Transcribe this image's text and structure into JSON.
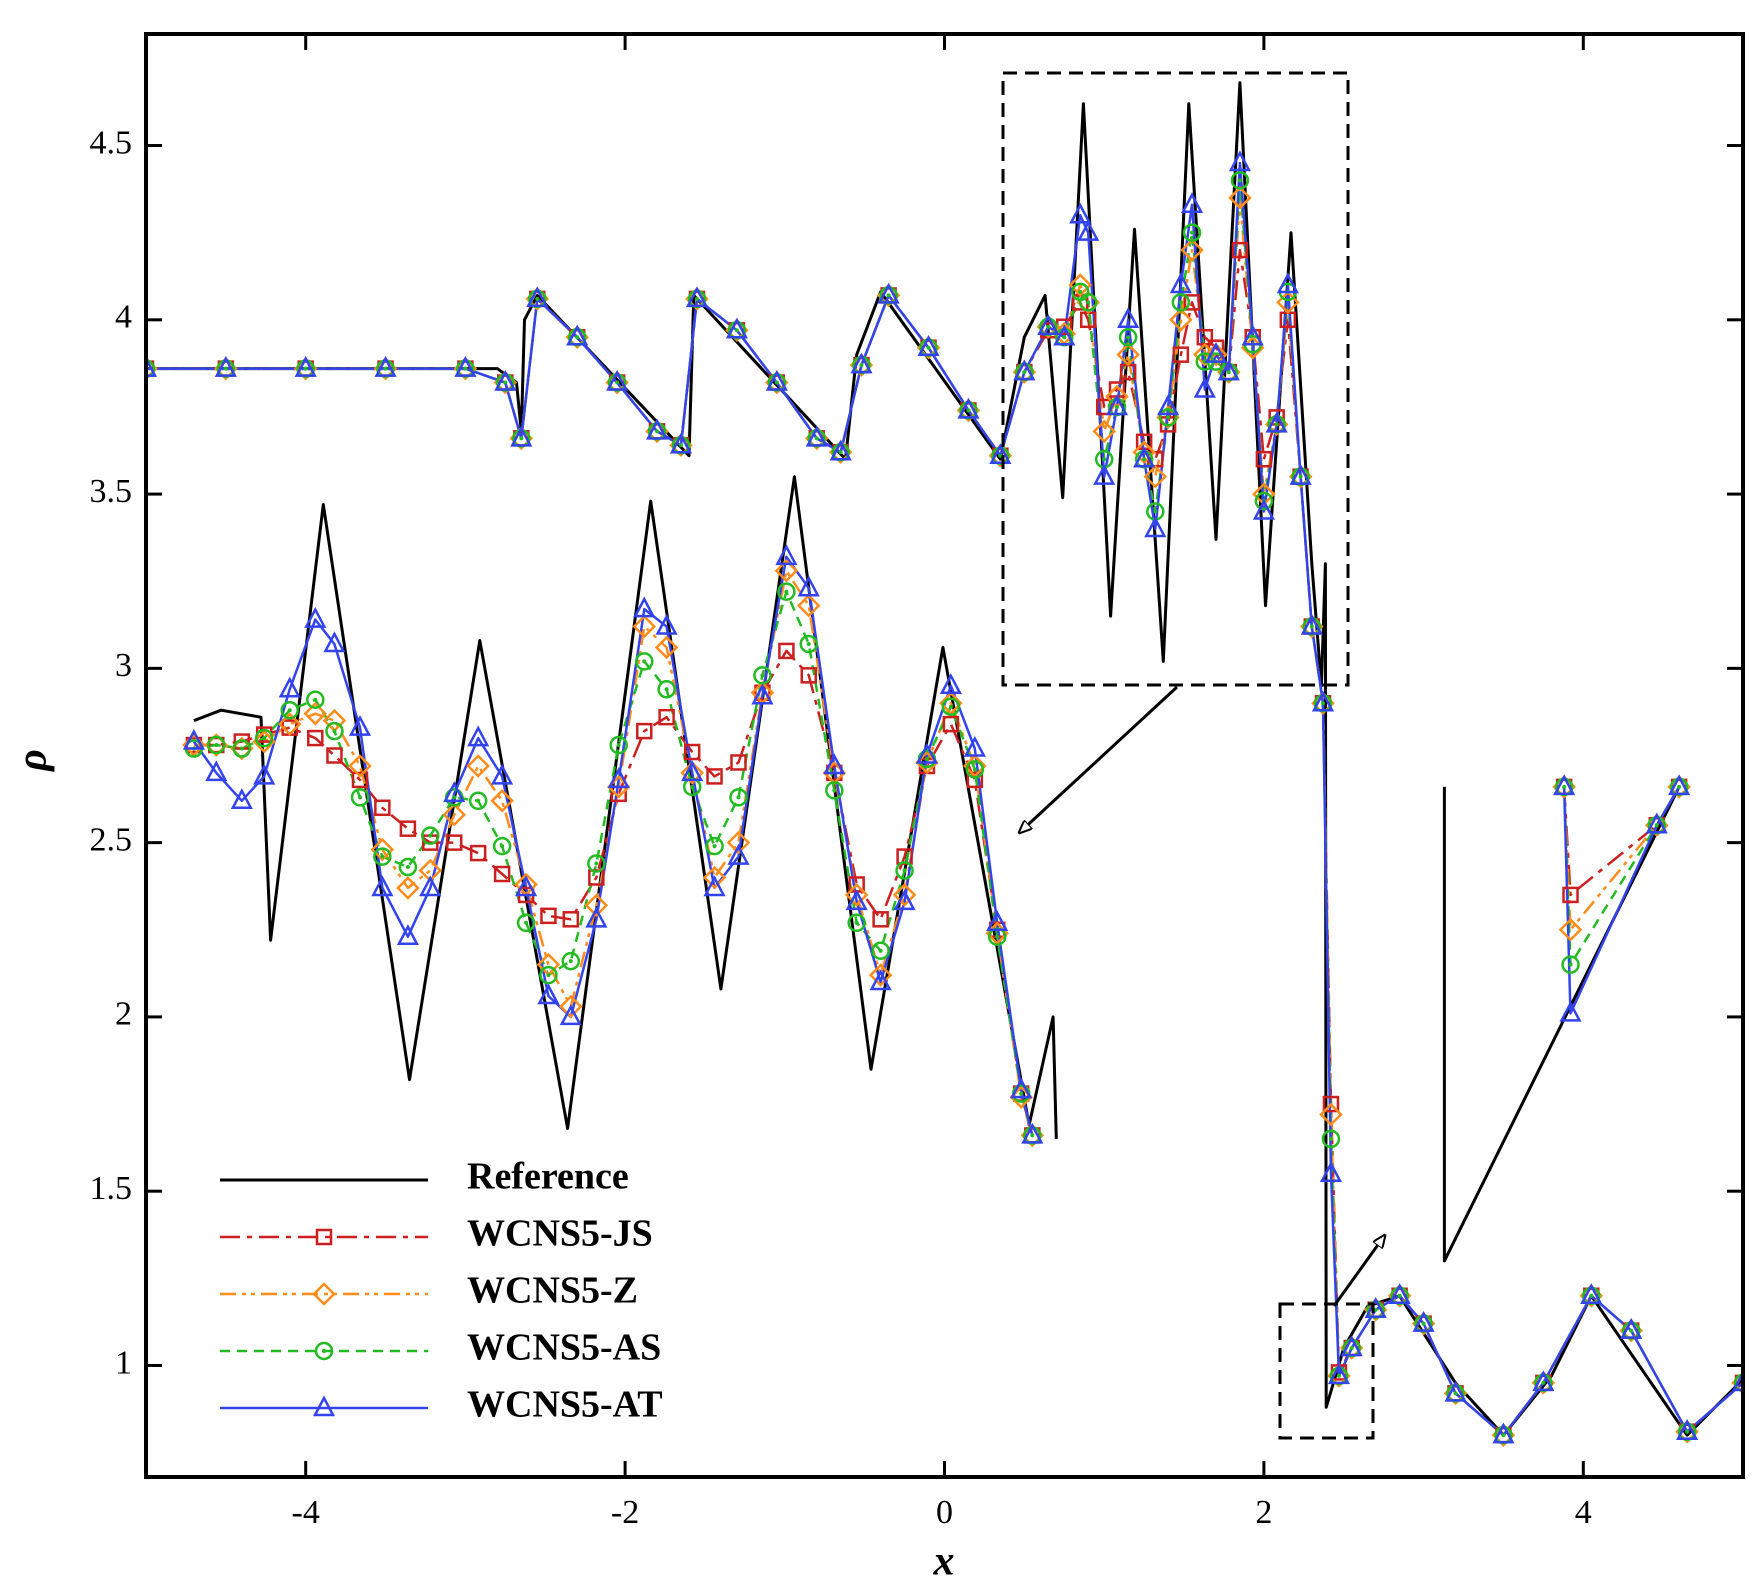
{
  "chart_data": {
    "type": "line",
    "xlabel": "x",
    "ylabel": "ρ",
    "xlim": [
      -5,
      5
    ],
    "ylim": [
      0.68,
      4.82
    ],
    "xticks": [
      -4,
      -2,
      0,
      2,
      4
    ],
    "yticks": [
      1,
      1.5,
      2,
      2.5,
      3,
      3.5,
      4,
      4.5
    ],
    "legend": "lower left",
    "x": [
      -5,
      -4.5,
      -4,
      -3.5,
      -3,
      -2.75,
      -2.65,
      -2.55,
      -2.3,
      -2.05,
      -1.8,
      -1.65,
      -1.55,
      -1.3,
      -1.05,
      -0.8,
      -0.65,
      -0.52,
      -0.35,
      -0.1,
      0.15,
      0.35,
      0.5,
      0.65,
      0.75,
      0.85,
      0.9,
      1.0,
      1.08,
      1.15,
      1.25,
      1.32,
      1.4,
      1.48,
      1.55,
      1.63,
      1.7,
      1.78,
      1.85,
      1.93,
      2.0,
      2.08,
      2.15,
      2.23,
      2.3,
      2.37,
      2.42,
      2.47,
      2.55,
      2.7,
      2.85,
      3.0,
      3.2,
      3.5,
      3.75,
      4.05,
      4.3,
      4.65,
      5.0
    ],
    "series": [
      {
        "name": "Reference",
        "color": "#000000",
        "dash": "solid",
        "marker": "none",
        "x": [
          -5,
          -2.8,
          -2.68,
          -2.65,
          -2.63,
          -2.55,
          -1.6,
          -1.57,
          -0.62,
          -0.55,
          -0.4,
          0.35,
          0.5,
          0.63,
          0.74,
          0.87,
          1.04,
          1.19,
          1.37,
          1.53,
          1.7,
          1.85,
          2.01,
          2.17,
          2.3,
          2.36,
          2.385,
          2.39,
          2.5,
          2.65,
          2.85,
          3.2,
          3.5,
          3.8,
          4.05,
          4.35,
          4.65,
          5.0
        ],
        "values": [
          3.86,
          3.86,
          3.82,
          3.68,
          4.0,
          4.07,
          3.61,
          4.07,
          3.6,
          3.9,
          4.08,
          3.6,
          3.95,
          4.07,
          3.49,
          4.62,
          3.15,
          4.26,
          3.02,
          4.62,
          3.37,
          4.68,
          3.18,
          4.25,
          3.3,
          2.95,
          3.3,
          0.88,
          1.05,
          1.17,
          1.2,
          0.95,
          0.8,
          0.97,
          1.2,
          1.0,
          0.8,
          0.96
        ]
      },
      {
        "name": "WCNS5-JS",
        "color": "#cc1f1f",
        "dash": "dash-dot",
        "marker": "square",
        "values": [
          3.86,
          3.86,
          3.86,
          3.86,
          3.86,
          3.82,
          3.66,
          4.06,
          3.95,
          3.82,
          3.68,
          3.64,
          4.06,
          3.97,
          3.82,
          3.66,
          3.62,
          3.87,
          4.07,
          3.92,
          3.74,
          3.61,
          3.85,
          3.97,
          3.98,
          4.05,
          4.0,
          3.75,
          3.8,
          3.85,
          3.65,
          3.6,
          3.7,
          3.9,
          4.05,
          3.95,
          3.92,
          3.85,
          4.2,
          3.95,
          3.6,
          3.72,
          4.0,
          3.55,
          3.12,
          2.9,
          1.75,
          0.98,
          1.05,
          1.16,
          1.2,
          1.12,
          0.92,
          0.8,
          0.95,
          1.2,
          1.1,
          0.81,
          0.95
        ]
      },
      {
        "name": "WCNS5-Z",
        "color": "#ff8c1a",
        "dash": "dash-dot-dot",
        "marker": "diamond",
        "values": [
          3.86,
          3.86,
          3.86,
          3.86,
          3.86,
          3.82,
          3.66,
          4.06,
          3.95,
          3.82,
          3.68,
          3.64,
          4.06,
          3.97,
          3.82,
          3.66,
          3.62,
          3.87,
          4.07,
          3.92,
          3.74,
          3.61,
          3.85,
          3.98,
          3.96,
          4.1,
          4.05,
          3.68,
          3.78,
          3.9,
          3.62,
          3.55,
          3.72,
          4.0,
          4.2,
          3.9,
          3.9,
          3.85,
          4.35,
          3.92,
          3.5,
          3.7,
          4.05,
          3.55,
          3.12,
          2.9,
          1.72,
          0.97,
          1.05,
          1.16,
          1.2,
          1.12,
          0.92,
          0.8,
          0.95,
          1.2,
          1.1,
          0.81,
          0.95
        ]
      },
      {
        "name": "WCNS5-AS",
        "color": "#22bb22",
        "dash": "dashed",
        "marker": "circle",
        "values": [
          3.86,
          3.86,
          3.86,
          3.86,
          3.86,
          3.82,
          3.66,
          4.06,
          3.95,
          3.82,
          3.68,
          3.64,
          4.06,
          3.97,
          3.82,
          3.66,
          3.62,
          3.87,
          4.07,
          3.92,
          3.74,
          3.61,
          3.85,
          3.98,
          3.95,
          4.08,
          4.05,
          3.6,
          3.75,
          3.95,
          3.6,
          3.45,
          3.72,
          4.05,
          4.25,
          3.88,
          3.88,
          3.85,
          4.4,
          3.93,
          3.48,
          3.7,
          4.08,
          3.55,
          3.12,
          2.9,
          1.65,
          0.97,
          1.05,
          1.16,
          1.2,
          1.12,
          0.92,
          0.8,
          0.95,
          1.2,
          1.1,
          0.81,
          0.95
        ]
      },
      {
        "name": "WCNS5-AT",
        "color": "#3344ee",
        "dash": "solid",
        "marker": "triangle",
        "values": [
          3.86,
          3.86,
          3.86,
          3.86,
          3.86,
          3.82,
          3.66,
          4.06,
          3.95,
          3.82,
          3.68,
          3.64,
          4.06,
          3.97,
          3.82,
          3.66,
          3.62,
          3.87,
          4.07,
          3.92,
          3.74,
          3.61,
          3.85,
          3.98,
          3.95,
          4.3,
          4.25,
          3.55,
          3.75,
          4.0,
          3.6,
          3.4,
          3.75,
          4.1,
          4.33,
          3.8,
          3.9,
          3.85,
          4.45,
          3.95,
          3.45,
          3.7,
          4.1,
          3.55,
          3.12,
          2.9,
          1.55,
          0.97,
          1.05,
          1.16,
          1.2,
          1.12,
          0.92,
          0.8,
          0.95,
          1.2,
          1.1,
          0.81,
          0.95
        ]
      }
    ],
    "insets": [
      {
        "x": [
          -4.7,
          -4.56,
          -4.4,
          -4.26,
          -4.1,
          -3.94,
          -3.82,
          -3.66,
          -3.52,
          -3.36,
          -3.22,
          -3.07,
          -2.92,
          -2.77,
          -2.62,
          -2.48,
          -2.34,
          -2.18,
          -2.04,
          -1.88,
          -1.74,
          -1.58,
          -1.44,
          -1.29,
          -1.14,
          -0.99,
          -0.85,
          -0.69,
          -0.55,
          -0.4,
          -0.25,
          -0.11,
          0.04,
          0.19,
          0.33,
          0.48,
          0.55
        ],
        "series": [
          {
            "x": [
              -4.7,
              -4.53,
              -4.28,
              -4.22,
              -3.89,
              -3.35,
              -2.91,
              -2.36,
              -1.84,
              -1.4,
              -0.94,
              -0.46,
              -0.01,
              0.53,
              0.68,
              0.7
            ],
            "values": [
              2.85,
              2.88,
              2.86,
              2.22,
              3.47,
              1.82,
              3.08,
              1.68,
              3.48,
              2.08,
              3.55,
              1.85,
              3.06,
              1.69,
              2.0,
              1.65
            ]
          },
          {
            "values": [
              2.78,
              2.78,
              2.79,
              2.81,
              2.83,
              2.8,
              2.75,
              2.68,
              2.6,
              2.54,
              2.5,
              2.5,
              2.47,
              2.41,
              2.35,
              2.29,
              2.28,
              2.4,
              2.64,
              2.82,
              2.86,
              2.76,
              2.69,
              2.73,
              2.93,
              3.05,
              2.98,
              2.7,
              2.38,
              2.28,
              2.46,
              2.72,
              2.84,
              2.68,
              2.25,
              1.78,
              1.66
            ]
          },
          {
            "values": [
              2.78,
              2.78,
              2.77,
              2.79,
              2.84,
              2.87,
              2.85,
              2.72,
              2.48,
              2.37,
              2.42,
              2.58,
              2.72,
              2.62,
              2.38,
              2.15,
              2.03,
              2.32,
              2.66,
              3.12,
              3.06,
              2.7,
              2.4,
              2.5,
              2.93,
              3.28,
              3.18,
              2.7,
              2.35,
              2.12,
              2.35,
              2.73,
              2.9,
              2.72,
              2.24,
              1.77,
              1.66
            ]
          },
          {
            "values": [
              2.77,
              2.78,
              2.77,
              2.8,
              2.88,
              2.91,
              2.82,
              2.63,
              2.46,
              2.43,
              2.52,
              2.63,
              2.62,
              2.49,
              2.27,
              2.12,
              2.16,
              2.44,
              2.78,
              3.02,
              2.94,
              2.66,
              2.49,
              2.63,
              2.98,
              3.22,
              3.07,
              2.65,
              2.27,
              2.19,
              2.42,
              2.74,
              2.89,
              2.71,
              2.23,
              1.78,
              1.66
            ]
          },
          {
            "values": [
              2.79,
              2.7,
              2.62,
              2.69,
              2.94,
              3.14,
              3.07,
              2.83,
              2.37,
              2.23,
              2.37,
              2.64,
              2.8,
              2.69,
              2.37,
              2.06,
              2.0,
              2.28,
              2.68,
              3.17,
              3.12,
              2.7,
              2.37,
              2.46,
              2.92,
              3.32,
              3.23,
              2.72,
              2.33,
              2.1,
              2.33,
              2.75,
              2.95,
              2.77,
              2.27,
              1.79,
              1.66
            ]
          }
        ]
      },
      {
        "x": [
          3.88,
          3.92,
          4.46,
          4.6
        ],
        "series": [
          {
            "x": [
              3.13,
              3.13,
              4.6
            ],
            "values": [
              2.66,
              1.3,
              2.66
            ]
          },
          {
            "values": [
              2.66,
              2.35,
              2.55,
              2.66
            ]
          },
          {
            "values": [
              2.66,
              2.25,
              2.55,
              2.66
            ]
          },
          {
            "values": [
              2.66,
              2.15,
              2.55,
              2.66
            ]
          },
          {
            "values": [
              2.66,
              2.01,
              2.55,
              2.66
            ]
          }
        ]
      }
    ]
  }
}
